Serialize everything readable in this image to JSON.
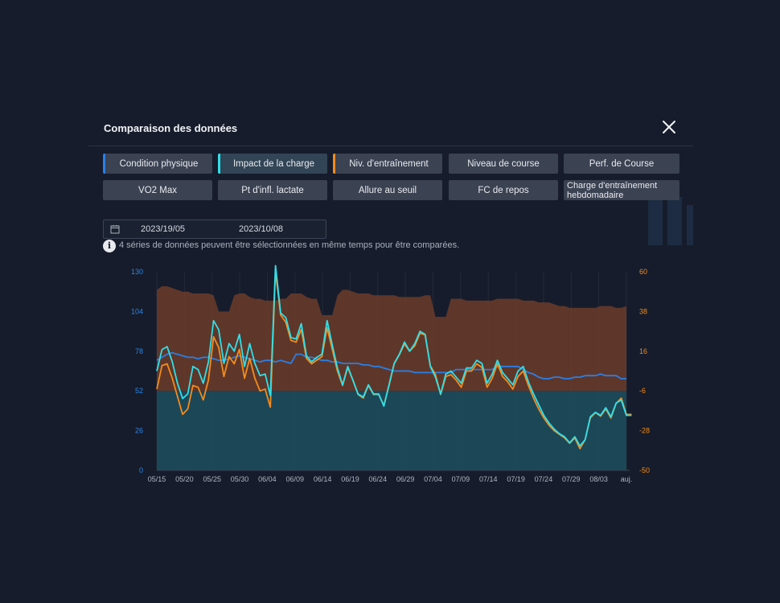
{
  "modal": {
    "title": "Comparaison des données"
  },
  "metrics": [
    {
      "label": "Condition physique",
      "state": "selected-blue"
    },
    {
      "label": "Impact de la charge",
      "state": "selected-cyan"
    },
    {
      "label": "Niv. d'entraînement",
      "state": "selected-orange"
    },
    {
      "label": "Niveau de course",
      "state": ""
    },
    {
      "label": "Perf. de Course",
      "state": ""
    },
    {
      "label": "VO2 Max",
      "state": ""
    },
    {
      "label": "Pt d'infl. lactate",
      "state": ""
    },
    {
      "label": "Allure au seuil",
      "state": ""
    },
    {
      "label": "FC de repos",
      "state": ""
    },
    {
      "label": "Charge d'entraînement hebdomadaire",
      "state": ""
    }
  ],
  "date_range": {
    "start": "2023/19/05",
    "end": "2023/10/08"
  },
  "info_text": "4 séries de données peuvent être sélectionnées en même temps pour être comparées.",
  "colors": {
    "condition": "#2a7fe6",
    "impact": "#2ee0ea",
    "training": "#f28c1e",
    "brown_area": "#6b3c2a",
    "teal_area": "#1d4d5c",
    "left_axis": "#2a86ea",
    "right_axis": "#f28c1e"
  },
  "chart_data": {
    "type": "line",
    "x_ticks": [
      "05/15",
      "05/20",
      "05/25",
      "05/30",
      "06/04",
      "06/09",
      "06/14",
      "06/19",
      "06/24",
      "06/29",
      "07/04",
      "07/09",
      "07/14",
      "07/19",
      "07/24",
      "07/29",
      "08/03",
      "auj."
    ],
    "ylim_left": [
      0,
      130
    ],
    "yticks_left": [
      "130",
      "104",
      "78",
      "52",
      "26",
      "0"
    ],
    "ylim_right": [
      -50,
      60
    ],
    "yticks_right": [
      "60",
      "38",
      "16",
      "-6",
      "-28",
      "-50"
    ],
    "series": [
      {
        "key": "brown",
        "color": "#6b3c2a",
        "values": [
          50,
          52,
          52,
          51,
          50,
          49,
          49,
          48,
          48,
          48,
          48,
          47,
          38,
          38,
          38,
          47,
          48,
          48,
          46,
          45,
          45,
          44,
          44,
          44,
          45,
          45,
          48,
          48,
          48,
          46,
          45,
          45,
          36,
          36,
          36,
          47,
          50,
          50,
          49,
          48,
          48,
          48,
          47,
          47,
          47,
          47,
          47,
          46,
          46,
          46,
          46,
          46,
          47,
          47,
          35,
          35,
          35,
          45,
          45,
          45,
          44,
          44,
          44,
          44,
          44,
          44,
          45,
          45,
          45,
          45,
          45,
          44,
          44,
          44,
          43,
          43,
          43,
          42,
          41,
          41,
          40,
          40,
          40,
          40,
          40,
          40,
          41,
          41,
          41,
          40,
          40,
          41
        ]
      },
      {
        "key": "condition",
        "color": "#2a7fe6",
        "values": [
          72,
          74,
          76,
          77,
          76,
          75,
          74,
          74,
          73,
          74,
          74,
          73,
          72,
          72,
          73,
          74,
          75,
          74,
          73,
          72,
          71,
          72,
          72,
          71,
          72,
          71,
          70,
          76,
          76,
          74,
          74,
          73,
          72,
          72,
          71,
          71,
          70,
          70,
          70,
          70,
          69,
          69,
          68,
          68,
          67,
          66,
          65,
          65,
          65,
          65,
          64,
          64,
          64,
          64,
          64,
          64,
          64,
          64,
          66,
          66,
          66,
          66,
          66,
          66,
          66,
          66,
          68,
          68,
          68,
          68,
          68,
          66,
          64,
          63,
          61,
          60,
          60,
          61,
          61,
          60,
          60,
          61,
          61,
          62,
          62,
          62,
          63,
          62,
          62,
          62,
          60,
          60
        ]
      },
      {
        "key": "impact",
        "color": "#2ee0ea",
        "values": [
          65,
          79,
          81,
          71,
          57,
          47,
          50,
          68,
          66,
          57,
          71,
          98,
          92,
          70,
          83,
          78,
          89,
          68,
          83,
          70,
          62,
          63,
          49,
          134,
          103,
          100,
          87,
          86,
          96,
          75,
          71,
          74,
          76,
          98,
          82,
          67,
          56,
          68,
          59,
          50,
          48,
          56,
          50,
          50,
          42,
          56,
          70,
          76,
          84,
          78,
          83,
          91,
          89,
          68,
          61,
          50,
          63,
          65,
          61,
          57,
          67,
          67,
          72,
          70,
          57,
          63,
          72,
          64,
          60,
          56,
          65,
          68,
          58,
          50,
          43,
          36,
          31,
          27,
          24,
          22,
          18,
          22,
          16,
          20,
          35,
          38,
          36,
          41,
          35,
          44,
          46,
          36,
          36
        ]
      },
      {
        "key": "training",
        "color": "#f28c1e",
        "values": [
          -5,
          8,
          9,
          1,
          -9,
          -19,
          -16,
          -3,
          -4,
          -11,
          0,
          24,
          18,
          2,
          13,
          9,
          17,
          1,
          12,
          1,
          -6,
          -5,
          -15,
          60,
          36,
          32,
          22,
          21,
          28,
          12,
          9,
          11,
          13,
          29,
          17,
          5,
          -3,
          7,
          0,
          -8,
          -10,
          -3,
          -8,
          -8,
          -14,
          -3,
          9,
          14,
          20,
          16,
          19,
          26,
          25,
          8,
          3,
          -8,
          2,
          3,
          0,
          -4,
          5,
          5,
          9,
          7,
          -4,
          1,
          9,
          2,
          -1,
          -5,
          2,
          5,
          -3,
          -10,
          -16,
          -21,
          -25,
          -28,
          -30,
          -32,
          -35,
          -32,
          -38,
          -33,
          -21,
          -18,
          -20,
          -16,
          -21,
          -13,
          -10,
          -19,
          -19
        ]
      }
    ]
  }
}
